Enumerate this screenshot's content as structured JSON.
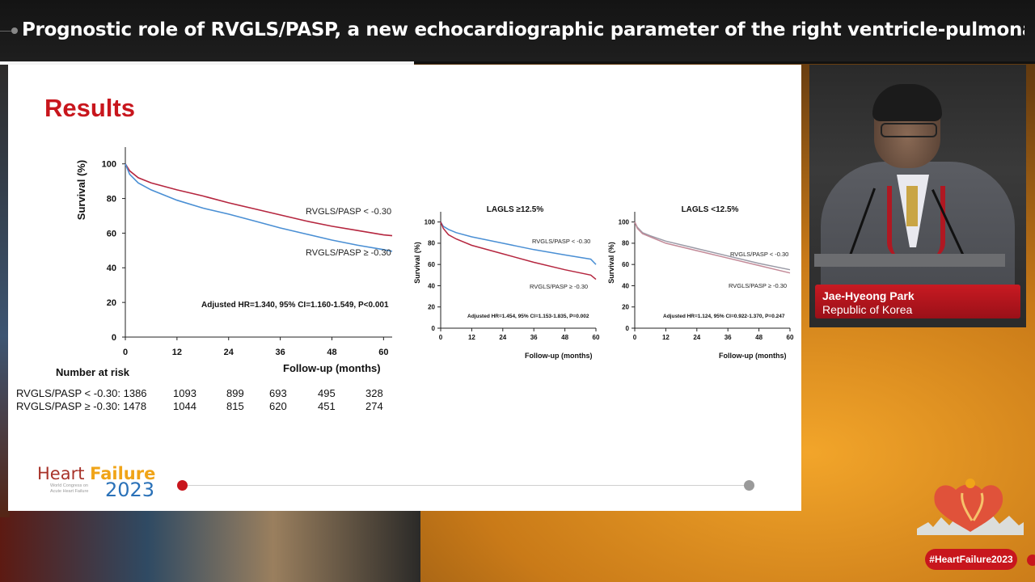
{
  "title_bar": {
    "text": "Prognostic role of RVGLS/PASP, a new echocardiographic parameter of the right ventricle-pulmonar…"
  },
  "slide": {
    "heading": "Results",
    "risk_table": {
      "title": "Number at risk",
      "rows": [
        {
          "label": "RVGLS/PASP < -0.30: 1386",
          "values": [
            "1093",
            "899",
            "693",
            "495",
            "328"
          ]
        },
        {
          "label": "RVGLS/PASP ≥ -0.30: 1478",
          "values": [
            "1044",
            "815",
            "620",
            "451",
            "274"
          ]
        }
      ]
    },
    "logo": {
      "word1": "Heart ",
      "word2": "Failure",
      "sub1": "World Congress on",
      "sub2": "Acute Heart Failure",
      "year": "2023"
    }
  },
  "speaker": {
    "name": "Jae-Hyeong Park",
    "country": "Republic of Korea"
  },
  "hashtag": "#HeartFailure2023",
  "colors": {
    "red_series": "#b5263f",
    "blue_series": "#4a8fd4",
    "gray_series": "#9a9aa6",
    "accent": "#c8161d"
  },
  "chart_data": [
    {
      "type": "line",
      "title": "",
      "xlabel": "Follow-up (months)",
      "ylabel": "Survival (%)",
      "xlim": [
        0,
        62
      ],
      "ylim": [
        0,
        105
      ],
      "xticks": [
        0,
        12,
        24,
        36,
        48,
        60
      ],
      "yticks": [
        0,
        20,
        40,
        60,
        80,
        100
      ],
      "annotation": "Adjusted HR=1.340, 95% CI=1.160-1.549, P<0.001",
      "series": [
        {
          "name": "RVGLS/PASP < -0.30",
          "color": "#b5263f",
          "x": [
            0,
            1,
            3,
            6,
            12,
            18,
            24,
            30,
            36,
            42,
            48,
            54,
            60,
            62
          ],
          "y": [
            100,
            96,
            92,
            89,
            85,
            81.5,
            77.5,
            74,
            70.5,
            67,
            64,
            61.5,
            59,
            58.5
          ]
        },
        {
          "name": "RVGLS/PASP ≥ -0.30",
          "color": "#4a8fd4",
          "x": [
            0,
            1,
            3,
            6,
            12,
            18,
            24,
            30,
            36,
            42,
            48,
            54,
            60,
            62
          ],
          "y": [
            100,
            94,
            89,
            85,
            79,
            74.5,
            71,
            67,
            63,
            59.5,
            56,
            53,
            50.5,
            49.5
          ]
        }
      ],
      "series_labels": [
        "RVGLS/PASP < -0.30",
        "RVGLS/PASP ≥ -0.30"
      ]
    },
    {
      "type": "line",
      "title": "LAGLS ≥12.5%",
      "xlabel": "Follow-up (months)",
      "ylabel": "Survival (%)",
      "xlim": [
        0,
        60
      ],
      "ylim": [
        0,
        102
      ],
      "xticks": [
        0,
        12,
        24,
        36,
        48,
        60
      ],
      "yticks": [
        0,
        20,
        40,
        60,
        80,
        100
      ],
      "annotation": "Adjusted HR=1.454, 95% CI=1.153-1.835, P=0.002",
      "series": [
        {
          "name": "RVGLS/PASP < -0.30",
          "color": "#4a8fd4",
          "x": [
            0,
            1,
            3,
            6,
            12,
            24,
            36,
            48,
            58,
            60
          ],
          "y": [
            100,
            96,
            93,
            90,
            86,
            80,
            74,
            69,
            65,
            60
          ]
        },
        {
          "name": "RVGLS/PASP ≥ -0.30",
          "color": "#b5263f",
          "x": [
            0,
            1,
            3,
            6,
            12,
            24,
            36,
            48,
            58,
            60
          ],
          "y": [
            100,
            94,
            88,
            84,
            78,
            70,
            62,
            55,
            50,
            46
          ]
        }
      ],
      "series_labels": [
        "RVGLS/PASP < -0.30",
        "RVGLS/PASP ≥ -0.30"
      ]
    },
    {
      "type": "line",
      "title": "LAGLS <12.5%",
      "xlabel": "Follow-up (months)",
      "ylabel": "Survival (%)",
      "xlim": [
        0,
        60
      ],
      "ylim": [
        0,
        102
      ],
      "xticks": [
        0,
        12,
        24,
        36,
        48,
        60
      ],
      "yticks": [
        0,
        20,
        40,
        60,
        80,
        100
      ],
      "annotation": "Adjusted HR=1.124, 95% CI=0.922-1.370, P=0.247",
      "series": [
        {
          "name": "RVGLS/PASP < -0.30",
          "color": "#9a9aa6",
          "x": [
            0,
            1,
            3,
            6,
            12,
            24,
            36,
            48,
            60
          ],
          "y": [
            100,
            95,
            90,
            87,
            82,
            75,
            68,
            61,
            55
          ]
        },
        {
          "name": "RVGLS/PASP ≥ -0.30",
          "color": "#c38a98",
          "x": [
            0,
            1,
            3,
            6,
            12,
            24,
            36,
            48,
            60
          ],
          "y": [
            100,
            94,
            89,
            86,
            80,
            73,
            66,
            59,
            52
          ]
        }
      ],
      "series_labels": [
        "RVGLS/PASP < -0.30",
        "RVGLS/PASP ≥ -0.30"
      ]
    }
  ]
}
